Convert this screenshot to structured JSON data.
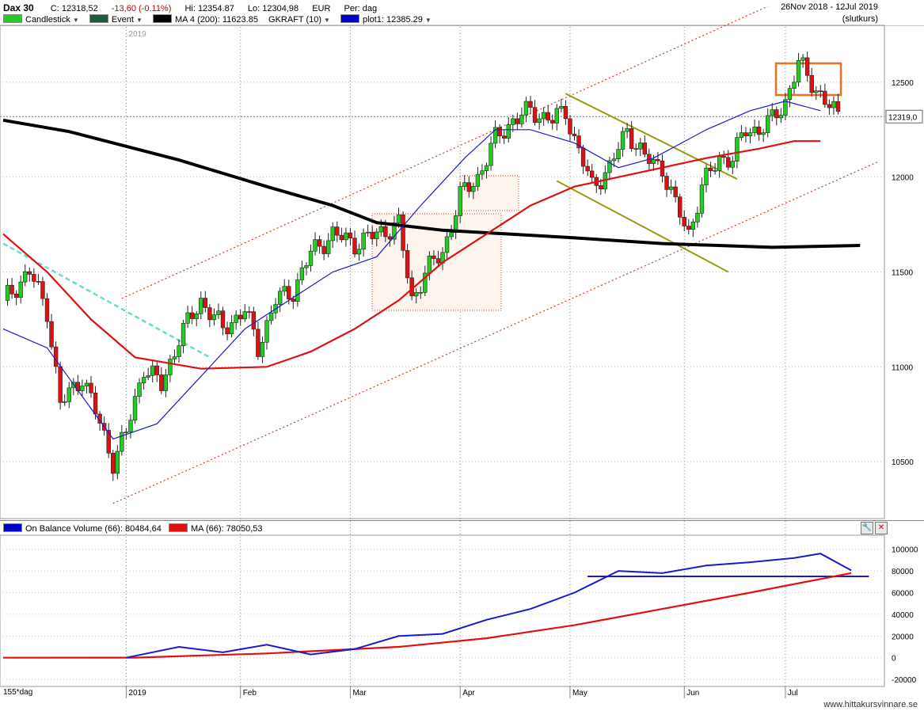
{
  "header": {
    "symbol": "Dax 30",
    "close": "C: 12318,52",
    "change": "-13,60 (-0.11%)",
    "high": "Hi: 12354.87",
    "low": "Lo: 12304,98",
    "currency": "EUR",
    "period": "Per: dag",
    "range": "26Nov 2018 - 12Jul 2019",
    "mode": "(slutkurs)"
  },
  "legend": [
    {
      "label": "Candlestick",
      "color": "#22cc22"
    },
    {
      "label": "Event",
      "color": "#1e5a3c"
    },
    {
      "label": "MA 4 (200): 11623.85",
      "color": "#000000"
    },
    {
      "label": "GKRAFT (10)",
      "color": "#ffffff"
    },
    {
      "label": "plot1: 12385.29",
      "color": "#0000cc"
    }
  ],
  "colors": {
    "up": "#22cc22",
    "down": "#dd1111",
    "ma200": "#000000",
    "ma_red": "#e01010",
    "ma_blue": "#1a1acc",
    "channel": "#c84020",
    "wedge": "#9a9a10",
    "dashed_trend": "#66ddcc",
    "highlight_box": "#f07020"
  },
  "chart_data": [
    {
      "type": "candlestick",
      "title": "Dax 30",
      "xlabel": "",
      "ylabel": "",
      "x_tick_labels": [
        "2019",
        "Feb",
        "Mar",
        "Apr",
        "May",
        "Jun",
        "Jul"
      ],
      "y_ticks": [
        10500,
        11000,
        11500,
        12000,
        12500
      ],
      "ylim": [
        10200,
        12800
      ],
      "last_price_label": "12319,0",
      "year_marker": "2019",
      "series": [
        {
          "name": "MA 4 (200)",
          "points": [
            [
              0,
              12300
            ],
            [
              15,
              12240
            ],
            [
              40,
              12090
            ],
            [
              60,
              11950
            ],
            [
              75,
              11850
            ],
            [
              85,
              11760
            ],
            [
              100,
              11720
            ],
            [
              130,
              11680
            ],
            [
              150,
              11650
            ],
            [
              175,
              11630
            ],
            [
              195,
              11640
            ]
          ]
        },
        {
          "name": "plot1",
          "points": [
            [
              0,
              11200
            ],
            [
              10,
              11100
            ],
            [
              25,
              10620
            ],
            [
              35,
              10700
            ],
            [
              45,
              10950
            ],
            [
              55,
              11200
            ],
            [
              65,
              11350
            ],
            [
              75,
              11500
            ],
            [
              85,
              11580
            ],
            [
              95,
              11850
            ],
            [
              105,
              12100
            ],
            [
              112,
              12250
            ],
            [
              120,
              12250
            ],
            [
              130,
              12180
            ],
            [
              140,
              12050
            ],
            [
              148,
              12100
            ],
            [
              160,
              12250
            ],
            [
              170,
              12350
            ],
            [
              178,
              12400
            ],
            [
              186,
              12350
            ]
          ]
        },
        {
          "name": "MA (red)",
          "points": [
            [
              0,
              11700
            ],
            [
              10,
              11500
            ],
            [
              20,
              11250
            ],
            [
              30,
              11050
            ],
            [
              45,
              10990
            ],
            [
              60,
              11000
            ],
            [
              70,
              11080
            ],
            [
              80,
              11200
            ],
            [
              90,
              11350
            ],
            [
              100,
              11550
            ],
            [
              110,
              11700
            ],
            [
              120,
              11850
            ],
            [
              130,
              11950
            ],
            [
              140,
              12000
            ],
            [
              150,
              12050
            ],
            [
              160,
              12100
            ],
            [
              172,
              12150
            ],
            [
              180,
              12190
            ],
            [
              186,
              12190
            ]
          ]
        },
        {
          "name": "Upper channel",
          "points": [
            [
              27,
              11360
            ],
            [
              174,
              12900
            ]
          ]
        },
        {
          "name": "Lower channel",
          "points": [
            [
              25,
              10280
            ],
            [
              199,
              12080
            ]
          ]
        }
      ]
    },
    {
      "type": "line",
      "title": "On Balance Volume",
      "series_labels": [
        "On Balance Volume (66): 80484,64",
        "MA (66): 78050,53"
      ],
      "y_ticks": [
        -20000,
        0,
        20000,
        40000,
        60000,
        80000,
        100000
      ],
      "ylim": [
        -25000,
        110000
      ],
      "series": [
        {
          "name": "On Balance Volume (66)",
          "points": [
            [
              28,
              0
            ],
            [
              40,
              10000
            ],
            [
              50,
              5000
            ],
            [
              60,
              12000
            ],
            [
              70,
              3000
            ],
            [
              80,
              8000
            ],
            [
              90,
              20000
            ],
            [
              100,
              22000
            ],
            [
              110,
              35000
            ],
            [
              120,
              45000
            ],
            [
              130,
              60000
            ],
            [
              135,
              70000
            ],
            [
              140,
              80000
            ],
            [
              150,
              78000
            ],
            [
              160,
              85000
            ],
            [
              170,
              88000
            ],
            [
              180,
              92000
            ],
            [
              186,
              96000
            ],
            [
              193,
              80484
            ]
          ]
        },
        {
          "name": "MA (66)",
          "points": [
            [
              0,
              0
            ],
            [
              30,
              100
            ],
            [
              60,
              4000
            ],
            [
              90,
              10000
            ],
            [
              110,
              18000
            ],
            [
              130,
              30000
            ],
            [
              150,
              45000
            ],
            [
              170,
              60000
            ],
            [
              193,
              78050
            ]
          ]
        },
        {
          "name": "level",
          "points": [
            [
              133,
              75000
            ],
            [
              197,
              75000
            ]
          ]
        }
      ]
    }
  ],
  "volume_panel": {
    "label_obv": "On Balance Volume (66): 80484,64",
    "label_ma": "MA (66): 78050,53"
  },
  "footer": {
    "days": "155*dag",
    "site": "www.hittakursvinnare.se"
  }
}
